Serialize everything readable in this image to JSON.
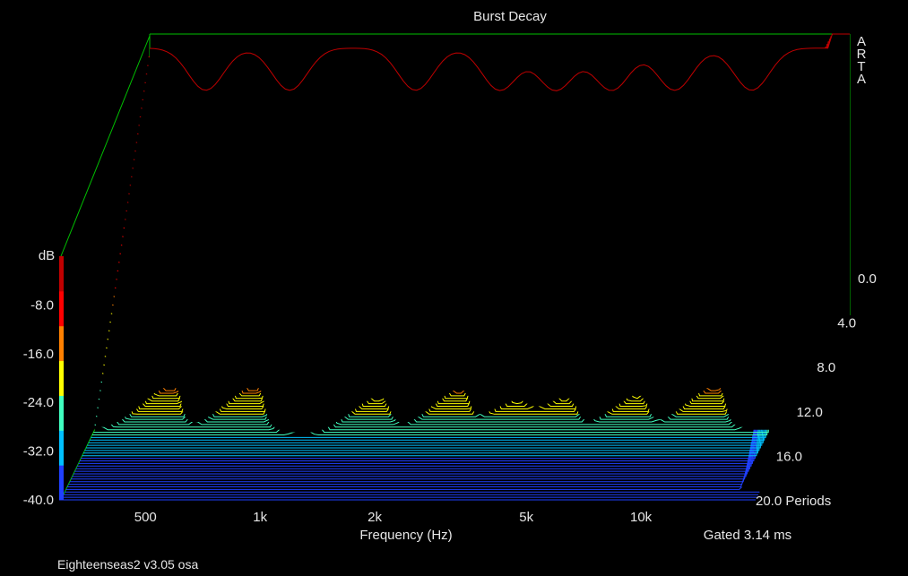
{
  "chart_data": {
    "type": "waterfall-3d",
    "title": "Burst Decay",
    "watermark": "A\nR\nT\nA",
    "xlabel": "Frequency (Hz)",
    "x_scale": "log",
    "x_ticks": [
      {
        "value": 500,
        "label": "500"
      },
      {
        "value": 1000,
        "label": "1k"
      },
      {
        "value": 2000,
        "label": "2k"
      },
      {
        "value": 5000,
        "label": "5k"
      },
      {
        "value": 10000,
        "label": "10k"
      }
    ],
    "xlim": [
      300,
      20000
    ],
    "zlabel": "dB",
    "z_ticks": [
      -8.0,
      -16.0,
      -24.0,
      -32.0,
      -40.0
    ],
    "z_tick_labels": [
      "-8.0",
      "-16.0",
      "-24.0",
      "-32.0",
      "-40.0"
    ],
    "zlim": [
      -40,
      0
    ],
    "depth_ticks": [
      {
        "value": 0,
        "label": "0.0"
      },
      {
        "value": 4,
        "label": "4.0"
      },
      {
        "value": 8,
        "label": "8.0"
      },
      {
        "value": 12,
        "label": "12.0"
      },
      {
        "value": 16,
        "label": "16.0"
      },
      {
        "value": 20,
        "label": "20.0 Periods"
      }
    ],
    "depth_unit": "Periods",
    "depth_range": [
      0,
      20
    ],
    "gate_label": "Gated 3.14 ms",
    "colormap": [
      "#2040ff",
      "#00c0ff",
      "#40ffc0",
      "#ffff00",
      "#ff8000",
      "#ff0000",
      "#c00000"
    ],
    "wall_color": "#00c000",
    "floor_color": "#2040ff"
  },
  "footer": {
    "text": "Eighteenseas2 v3.05 osa"
  }
}
